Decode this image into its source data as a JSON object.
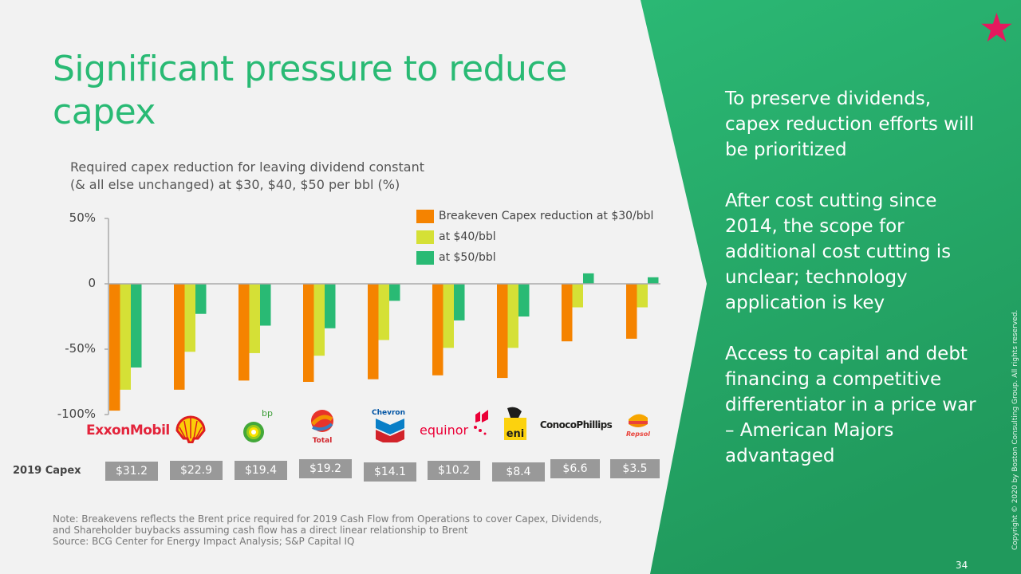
{
  "slide": {
    "title": "Significant pressure to reduce capex",
    "page_number": "34",
    "copyright": "Copyright © 2020 by Boston Consulting Group. All rights reserved.",
    "star_icon": "star-icon",
    "accent_color": "#29ba74",
    "star_color": "#e5195e"
  },
  "right_panel": {
    "paragraphs": [
      "To preserve dividends, capex reduction efforts will be prioritized",
      "After cost cutting since 2014, the scope for additional cost cutting is unclear; technology application is key",
      "Access to capital and debt financing a competitive differentiator in a price war – American Majors advantaged"
    ]
  },
  "capex_row": {
    "label": "2019 Capex",
    "values": [
      "$31.2",
      "$22.9",
      "$19.4",
      "$19.2",
      "$14.1",
      "$10.2",
      "$8.4",
      "$6.6",
      "$3.5"
    ]
  },
  "notes": {
    "line1": "Note: Breakevens reflects the Brent price required for 2019 Cash Flow from Operations to cover Capex, Dividends,",
    "line2": "and Shareholder buybacks assuming cash flow has a direct linear relationship to Brent",
    "line3": "Source: BCG Center for Energy Impact Analysis; S&P Capital IQ"
  },
  "chart_data": {
    "type": "bar",
    "title": "Required capex reduction for leaving dividend constant (& all else unchanged) at $30, $40, $50 per bbl (%)",
    "subtitle_line1": "Required capex reduction for leaving dividend constant",
    "subtitle_line2": "(& all else unchanged) at $30, $40, $50 per bbl (%)",
    "xlabel": "",
    "ylabel": "",
    "ylim": [
      -100,
      50
    ],
    "yticks": [
      50,
      0,
      -50,
      -100
    ],
    "ytick_labels": [
      "50%",
      "0",
      "-50%",
      "-100%"
    ],
    "grid": false,
    "legend_position": "top-right",
    "categories": [
      "ExxonMobil",
      "Shell",
      "bp",
      "Total",
      "Chevron",
      "equinor",
      "eni",
      "ConocoPhillips",
      "Repsol"
    ],
    "series": [
      {
        "name": "Breakeven Capex reduction at $30/bbl",
        "color": "#f58300",
        "values": [
          -97,
          -81,
          -74,
          -75,
          -73,
          -70,
          -72,
          -44,
          -42
        ]
      },
      {
        "name": "at $40/bbl",
        "color": "#d5e036",
        "values": [
          -81,
          -52,
          -53,
          -55,
          -43,
          -49,
          -49,
          -18,
          -18
        ]
      },
      {
        "name": "at $50/bbl",
        "color": "#29ba74",
        "values": [
          -64,
          -23,
          -32,
          -34,
          -13,
          -28,
          -25,
          8,
          5
        ]
      }
    ]
  }
}
